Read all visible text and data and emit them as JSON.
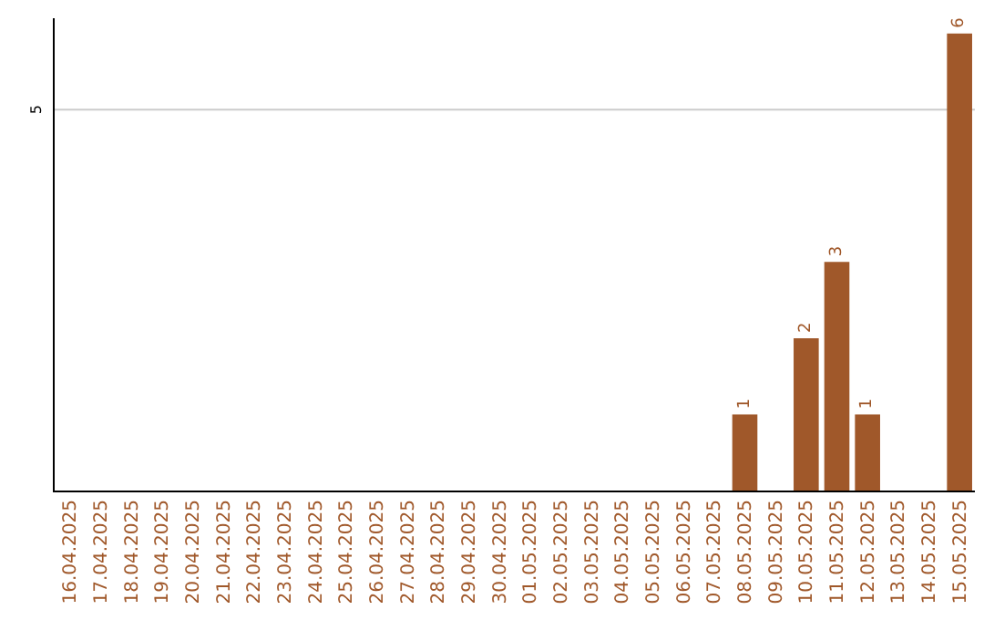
{
  "chart_data": {
    "type": "bar",
    "categories": [
      "16.04.2025",
      "17.04.2025",
      "18.04.2025",
      "19.04.2025",
      "20.04.2025",
      "21.04.2025",
      "22.04.2025",
      "23.04.2025",
      "24.04.2025",
      "25.04.2025",
      "26.04.2025",
      "27.04.2025",
      "28.04.2025",
      "29.04.2025",
      "30.04.2025",
      "01.05.2025",
      "02.05.2025",
      "03.05.2025",
      "04.05.2025",
      "05.05.2025",
      "06.05.2025",
      "07.05.2025",
      "08.05.2025",
      "09.05.2025",
      "10.05.2025",
      "11.05.2025",
      "12.05.2025",
      "13.05.2025",
      "14.05.2025",
      "15.05.2025"
    ],
    "values": [
      null,
      null,
      null,
      null,
      null,
      null,
      null,
      null,
      null,
      null,
      null,
      null,
      null,
      null,
      null,
      null,
      null,
      null,
      null,
      null,
      null,
      null,
      1,
      null,
      2,
      3,
      1,
      null,
      null,
      6
    ],
    "data_labels": true,
    "ylim": [
      0,
      6.2
    ],
    "ref_lines": [
      {
        "axis": "y",
        "value": 5,
        "label": "5",
        "color": "#cccccc"
      }
    ],
    "color": "#a0582a",
    "legend": false
  }
}
